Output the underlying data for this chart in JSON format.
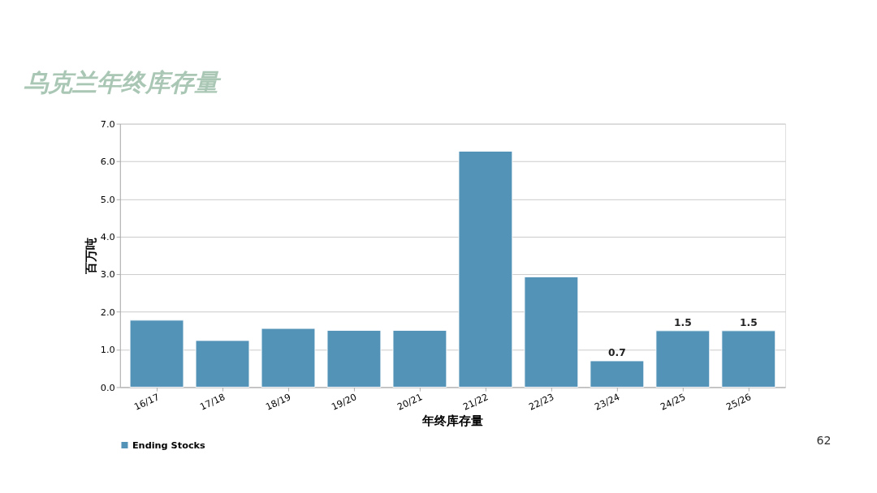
{
  "chart_data": {
    "type": "bar",
    "title": "乌克兰年终库存量",
    "xlabel": "年终库存量",
    "ylabel": "百万吨",
    "categories": [
      "16/17",
      "17/18",
      "18/19",
      "19/20",
      "20/21",
      "21/22",
      "22/23",
      "23/24",
      "24/25",
      "25/26"
    ],
    "series": [
      {
        "name": "Ending Stocks",
        "color": "#5393b8",
        "values": [
          1.78,
          1.24,
          1.56,
          1.51,
          1.51,
          6.27,
          2.93,
          0.7,
          1.5,
          1.5
        ],
        "value_labels": [
          null,
          null,
          null,
          null,
          null,
          null,
          null,
          "0.7",
          "1.5",
          "1.5"
        ]
      }
    ],
    "ylim": [
      0,
      7
    ],
    "yticks": [
      {
        "value": 0,
        "label": "0.0"
      },
      {
        "value": 1,
        "label": "1.0"
      },
      {
        "value": 2,
        "label": "2.0"
      },
      {
        "value": 3,
        "label": "3.0"
      },
      {
        "value": 4,
        "label": "4.0"
      },
      {
        "value": 5,
        "label": "5.0"
      },
      {
        "value": 6,
        "label": "6.0"
      },
      {
        "value": 7,
        "label": "7.0"
      }
    ],
    "grid": "y",
    "legend": "bottom",
    "annotations": [
      "62"
    ]
  }
}
